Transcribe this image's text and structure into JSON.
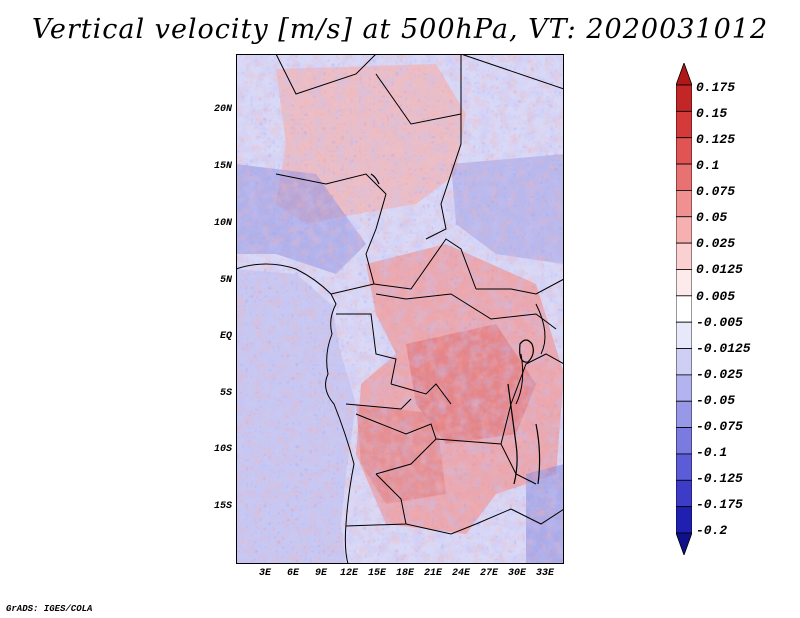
{
  "title": "Vertical velocity [m/s] at 500hPa, VT: 2020031012",
  "map": {
    "lat_ticks": [
      "20N",
      "15N",
      "10N",
      "5N",
      "EQ",
      "5S",
      "10S",
      "15S"
    ],
    "lat_values": [
      20,
      15,
      10,
      5,
      0,
      -5,
      -10,
      -15
    ],
    "lon_ticks": [
      "3E",
      "6E",
      "9E",
      "12E",
      "15E",
      "18E",
      "21E",
      "24E",
      "27E",
      "30E",
      "33E"
    ],
    "lon_values": [
      3,
      6,
      9,
      12,
      15,
      18,
      21,
      24,
      27,
      30,
      33
    ],
    "lat_range": [
      -20,
      25
    ],
    "lon_range": [
      0,
      35
    ]
  },
  "colorbar": {
    "levels": [
      "0.175",
      "0.15",
      "0.125",
      "0.1",
      "0.075",
      "0.05",
      "0.025",
      "0.0125",
      "0.005",
      "-0.005",
      "-0.0125",
      "-0.025",
      "-0.05",
      "-0.075",
      "-0.1",
      "-0.125",
      "-0.175",
      "-0.2"
    ],
    "colors": [
      "#b01818",
      "#c22626",
      "#d43a3a",
      "#e05454",
      "#e87272",
      "#f09090",
      "#f6b0b0",
      "#fbd0d0",
      "#fdebeb",
      "#ffffff",
      "#e8e8fb",
      "#cfcff6",
      "#b3b3f0",
      "#9898e8",
      "#7a7ae0",
      "#5c5cd8",
      "#3c3cc8",
      "#2020b0",
      "#10108a"
    ]
  },
  "credit": "GrADS: IGES/COLA"
}
